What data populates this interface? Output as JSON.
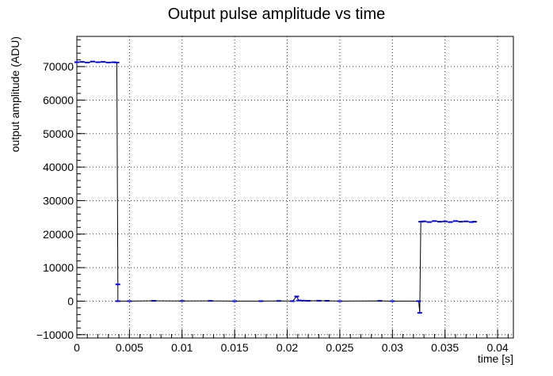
{
  "chart_data": {
    "type": "line",
    "title": "Output pulse amplitude vs time",
    "xlabel": "time [s]",
    "ylabel": "output amplitude (ADU)",
    "xlim": [
      0,
      0.0415
    ],
    "ylim": [
      -11000,
      79000
    ],
    "grid": true,
    "x_ticks": [
      0,
      0.005,
      0.01,
      0.015,
      0.02,
      0.025,
      0.03,
      0.035,
      0.04
    ],
    "x_tick_labels": [
      "0",
      "0.005",
      "0.01",
      "0.015",
      "0.02",
      "0.025",
      "0.03",
      "0.035",
      "0.04"
    ],
    "y_ticks": [
      -10000,
      0,
      10000,
      20000,
      30000,
      40000,
      50000,
      60000,
      70000
    ],
    "y_tick_labels": [
      "−10000",
      "0",
      "10000",
      "20000",
      "30000",
      "40000",
      "50000",
      "60000",
      "70000"
    ],
    "series": [
      {
        "color": "#0000ff",
        "line_color": "#000000",
        "points": [
          [
            0.0,
            71300
          ],
          [
            0.0005,
            71400
          ],
          [
            0.001,
            71200
          ],
          [
            0.0015,
            71500
          ],
          [
            0.002,
            71300
          ],
          [
            0.0025,
            71400
          ],
          [
            0.003,
            71200
          ],
          [
            0.0035,
            71300
          ],
          [
            0.0038,
            71200
          ],
          [
            0.0039,
            5000
          ],
          [
            0.0039,
            0
          ],
          [
            0.005,
            0
          ],
          [
            0.0073,
            100
          ],
          [
            0.01,
            50
          ],
          [
            0.0127,
            80
          ],
          [
            0.015,
            0
          ],
          [
            0.0175,
            0
          ],
          [
            0.0192,
            60
          ],
          [
            0.0205,
            0
          ],
          [
            0.0209,
            1400
          ],
          [
            0.0211,
            200
          ],
          [
            0.0215,
            150
          ],
          [
            0.022,
            100
          ],
          [
            0.023,
            120
          ],
          [
            0.0238,
            100
          ],
          [
            0.025,
            0
          ],
          [
            0.0288,
            80
          ],
          [
            0.03,
            0
          ],
          [
            0.0325,
            0
          ],
          [
            0.0326,
            -3500
          ],
          [
            0.0327,
            23700
          ],
          [
            0.033,
            23800
          ],
          [
            0.0335,
            23600
          ],
          [
            0.034,
            23900
          ],
          [
            0.0345,
            23700
          ],
          [
            0.035,
            23800
          ],
          [
            0.0355,
            23600
          ],
          [
            0.036,
            23900
          ],
          [
            0.0365,
            23700
          ],
          [
            0.037,
            23800
          ],
          [
            0.0375,
            23600
          ],
          [
            0.0378,
            23700
          ]
        ]
      }
    ]
  }
}
